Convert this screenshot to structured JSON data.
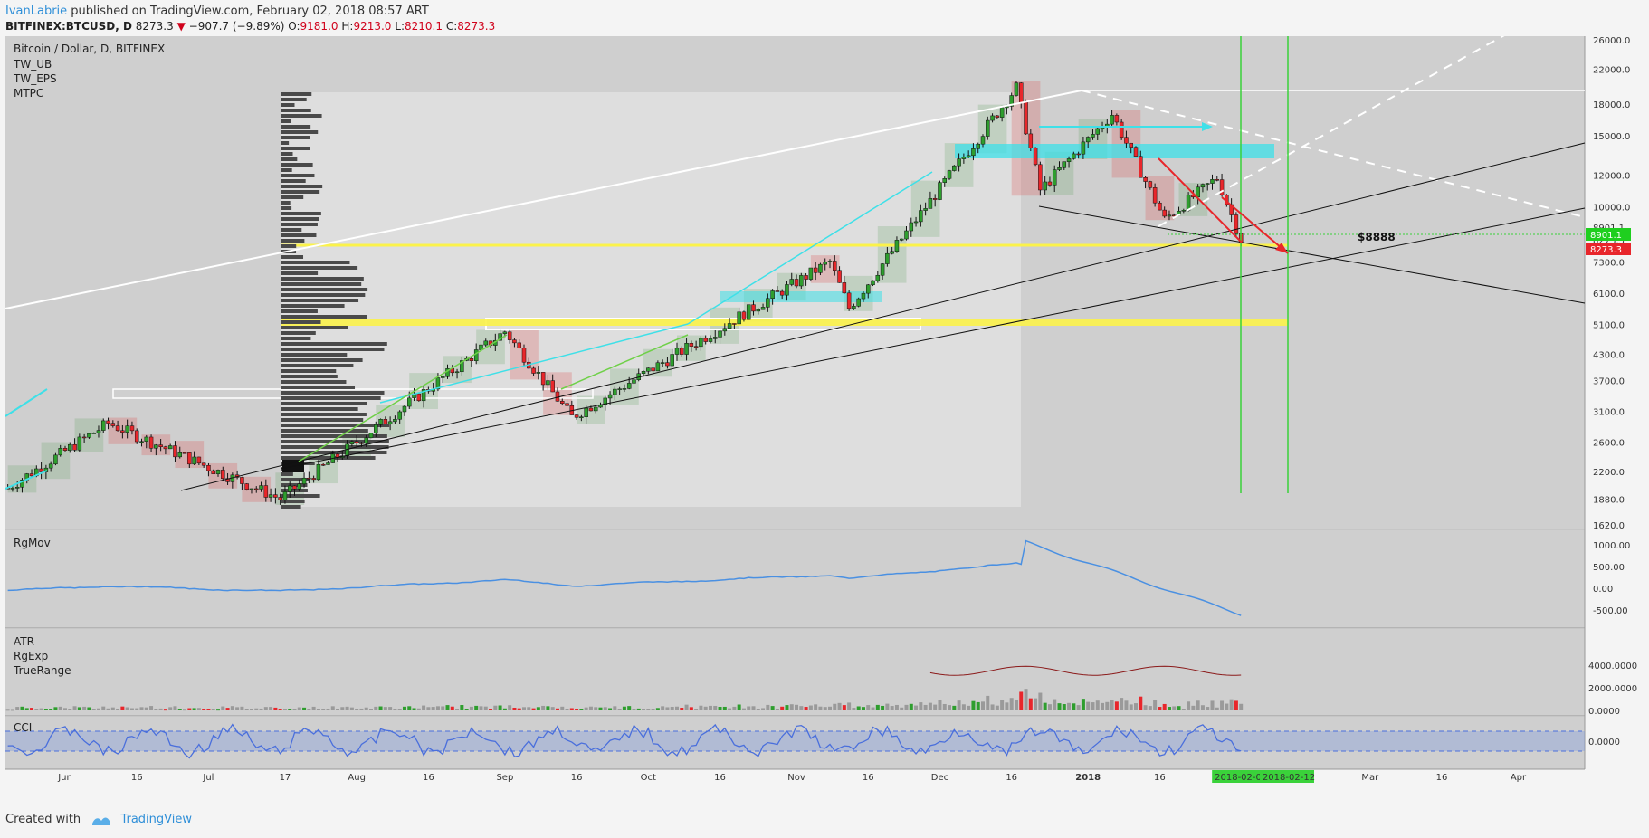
{
  "header": {
    "author": "IvanLabrie",
    "published": "published on TradingView.com, February 02, 2018 08:57 ART"
  },
  "symbol_line": {
    "symbol": "BITFINEX:BTCUSD, D",
    "last": "8273.3",
    "change": "−907.7 (−9.89%)",
    "o_label": "O:",
    "o": "9181.0",
    "h_label": "H:",
    "h": "9213.0",
    "l_label": "L:",
    "l": "8210.1",
    "c_label": "C:",
    "c": "8273.3"
  },
  "legend": {
    "title": "Bitcoin / Dollar, D, BITFINEX",
    "studies": [
      "TW_UB",
      "TW_EPS",
      "MTPC"
    ]
  },
  "annotations": {
    "price_note": "$8888",
    "current_price_tag": "8273.3",
    "level_tag": "8901.1"
  },
  "panes": {
    "rgmov": {
      "label": "RgMov",
      "ticks": [
        "1000.00",
        "500.00",
        "0.00",
        "-500.00"
      ]
    },
    "atr": {
      "labels": [
        "ATR",
        "RgExp",
        "TrueRange"
      ],
      "ticks": [
        "4000.0000",
        "2000.0000",
        "0.0000"
      ]
    },
    "cci": {
      "label": "CCI",
      "ticks": [
        "0.0000"
      ]
    }
  },
  "colors": {
    "up": "#2e9e2e",
    "down": "#e8262b",
    "rgmov": "#4a90e2",
    "cci": "#4a6fdc",
    "rgexp": "#8b1a1a",
    "cyan": "#3ee0e8",
    "yellow": "#fbf24a",
    "green_line": "#3ad23a"
  },
  "chart_data": {
    "type": "candlestick",
    "price_axis": [
      "26000.0",
      "22000.0",
      "18000.0",
      "15000.0",
      "12000.0",
      "10000.0",
      "8901.1",
      "8273.3",
      "7300.0",
      "6100.0",
      "5100.0",
      "4300.0",
      "3700.0",
      "3100.0",
      "2600.0",
      "2200.0",
      "1880.0",
      "1620.0"
    ],
    "time_axis": [
      "Jun",
      "16",
      "Jul",
      "17",
      "Aug",
      "16",
      "Sep",
      "16",
      "Oct",
      "16",
      "Nov",
      "16",
      "Dec",
      "16",
      "2018",
      "16",
      "2018-02-02",
      "2018-02-12",
      "Mar",
      "16",
      "Apr"
    ],
    "log_scale": true,
    "key_points": [
      {
        "date": "2017-05-20",
        "price": 2000
      },
      {
        "date": "2017-06-10",
        "price": 2900
      },
      {
        "date": "2017-07-16",
        "price": 1880
      },
      {
        "date": "2017-09-01",
        "price": 4900
      },
      {
        "date": "2017-09-15",
        "price": 3000
      },
      {
        "date": "2017-11-08",
        "price": 7300
      },
      {
        "date": "2017-11-12",
        "price": 5600
      },
      {
        "date": "2017-12-17",
        "price": 19800
      },
      {
        "date": "2017-12-22",
        "price": 11000
      },
      {
        "date": "2018-01-06",
        "price": 17000
      },
      {
        "date": "2018-01-17",
        "price": 9300
      },
      {
        "date": "2018-01-28",
        "price": 11800
      },
      {
        "date": "2018-02-02",
        "price": 8273.3
      }
    ]
  }
}
